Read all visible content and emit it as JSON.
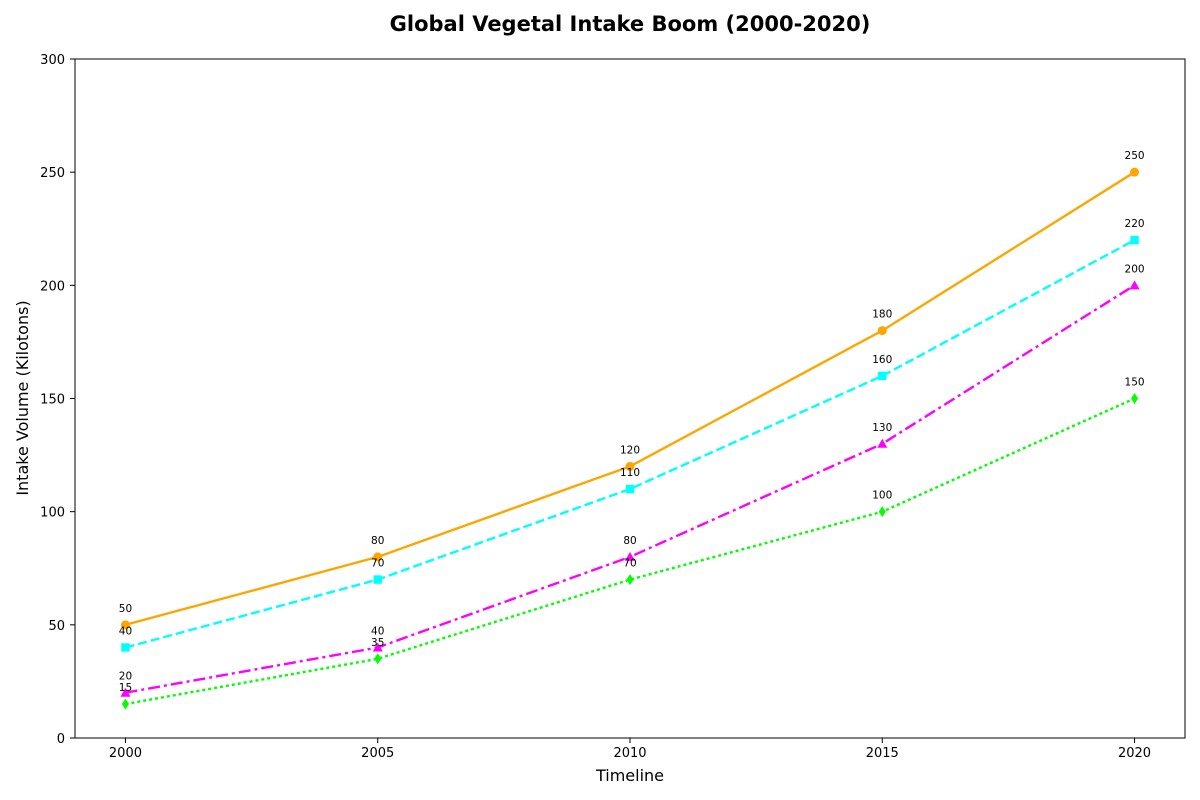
{
  "chart_data": {
    "type": "line",
    "title": "Global Vegetal Intake Boom (2000-2020)",
    "xlabel": "Timeline",
    "ylabel": "Intake Volume (Kilotons)",
    "x": [
      2000,
      2005,
      2010,
      2015,
      2020
    ],
    "x_tick_labels": [
      "2000",
      "2005",
      "2010",
      "2015",
      "2020"
    ],
    "xlim": [
      1999,
      2021
    ],
    "ylim": [
      0,
      300
    ],
    "y_ticks": [
      0,
      50,
      100,
      150,
      200,
      250,
      300
    ],
    "y_tick_labels": [
      "0",
      "50",
      "100",
      "150",
      "200",
      "250",
      "300"
    ],
    "grid": false,
    "legend": "none",
    "series": [
      {
        "values": [
          50,
          80,
          120,
          180,
          250
        ],
        "value_labels": [
          "50",
          "80",
          "120",
          "180",
          "250"
        ],
        "color": "#FFA500",
        "line_style": "solid",
        "marker": "circle"
      },
      {
        "values": [
          40,
          70,
          110,
          160,
          220
        ],
        "value_labels": [
          "40",
          "70",
          "110",
          "160",
          "220"
        ],
        "color": "#00FFFF",
        "line_style": "dashed",
        "marker": "square"
      },
      {
        "values": [
          20,
          40,
          80,
          130,
          200
        ],
        "value_labels": [
          "20",
          "40",
          "80",
          "130",
          "200"
        ],
        "color": "#FF00FF",
        "line_style": "dashdot",
        "marker": "triangle"
      },
      {
        "values": [
          15,
          35,
          70,
          100,
          150
        ],
        "value_labels": [
          "15",
          "35",
          "70",
          "100",
          "150"
        ],
        "color": "#00FF00",
        "line_style": "dotted",
        "marker": "diamond"
      }
    ]
  }
}
